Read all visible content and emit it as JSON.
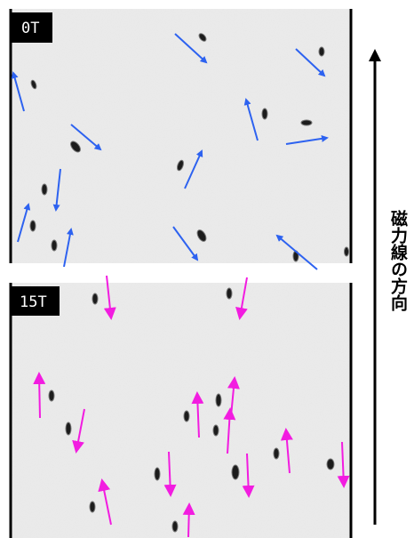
{
  "panels": [
    {
      "label": "0T"
    },
    {
      "label": "15T"
    }
  ],
  "direction_label": "磁力線の方向"
}
